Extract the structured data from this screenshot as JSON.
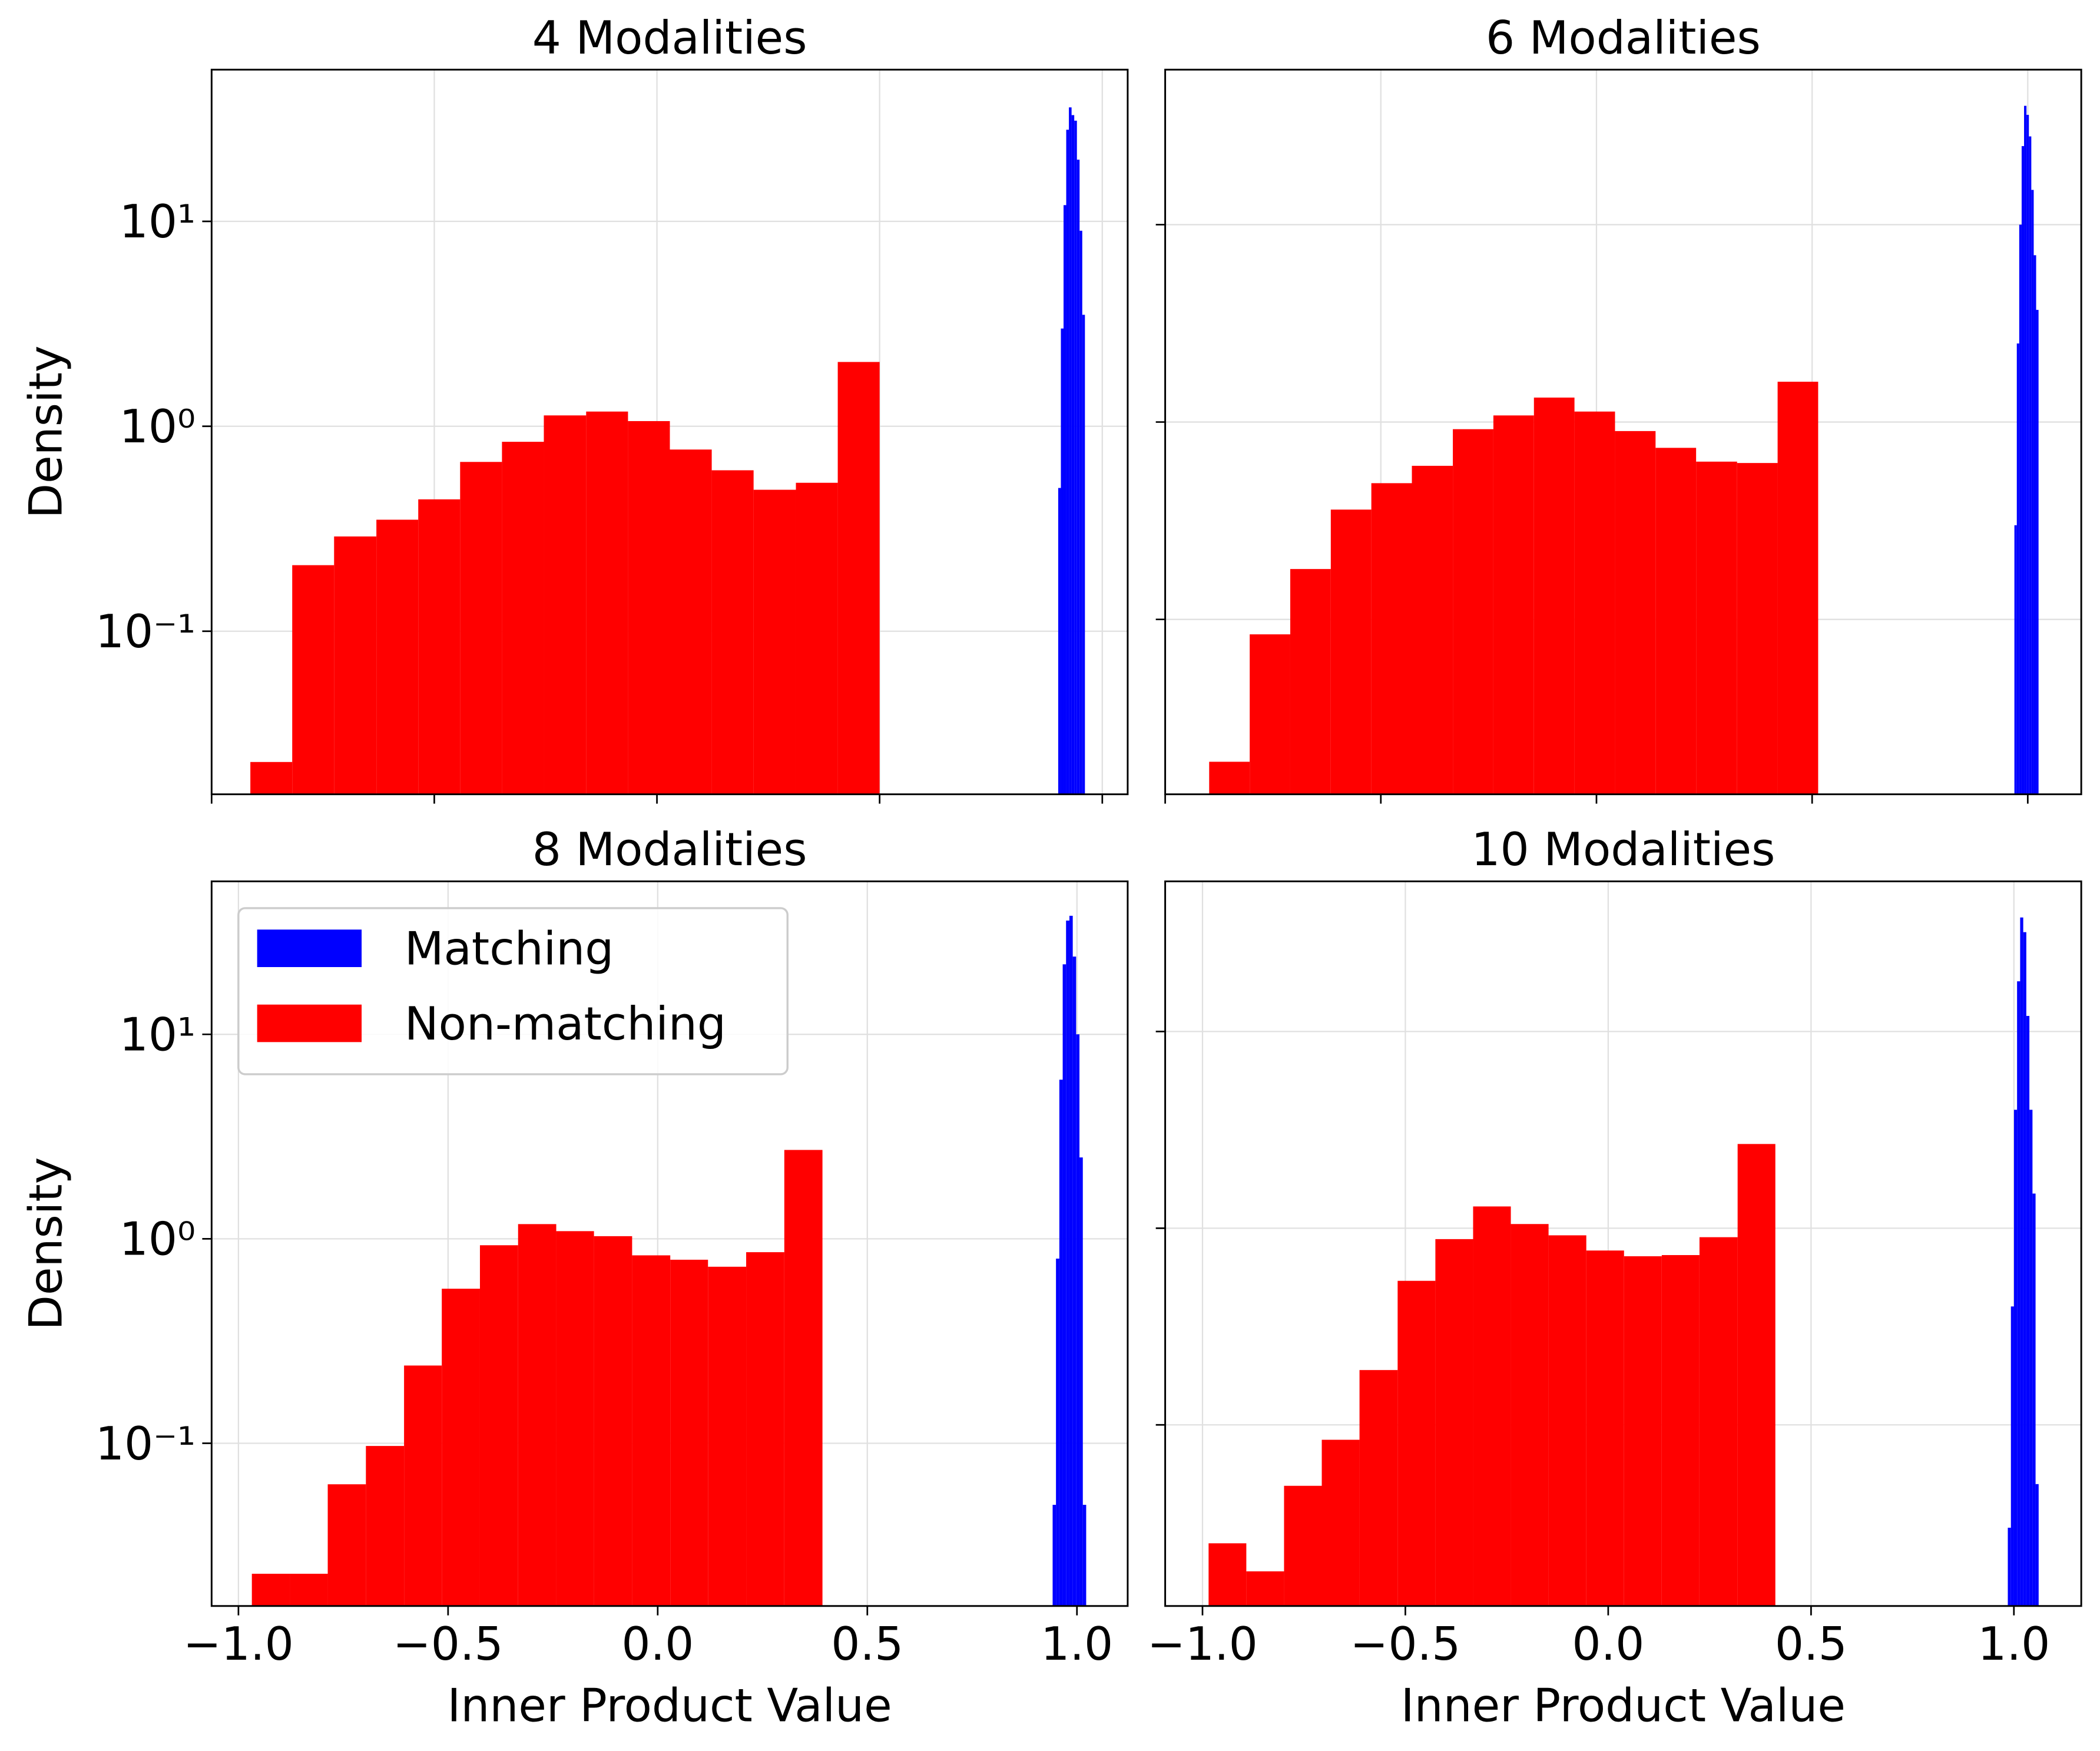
{
  "chart_data": [
    {
      "type": "histogram",
      "title": "4 Modalities",
      "ylabel": "Density",
      "yscale": "log",
      "grid": true,
      "xlim": [
        -1.0,
        1.057
      ],
      "ylim": [
        0.016,
        55
      ],
      "xticks": [
        -1.0,
        -0.5,
        0.0,
        0.5,
        1.0
      ],
      "yticks": [
        {
          "value": 0.1,
          "label": "10⁻¹"
        },
        {
          "value": 1,
          "label": "10⁰"
        },
        {
          "value": 10,
          "label": "10¹"
        }
      ],
      "series": [
        {
          "name": "Matching",
          "color": "#0000ff",
          "bins": [
            0.901,
            0.907,
            0.913,
            0.919,
            0.925,
            0.931,
            0.937,
            0.943,
            0.949,
            0.955,
            0.961
          ],
          "values": [
            0.5,
            3,
            12,
            28,
            36,
            33,
            31,
            20,
            9,
            3.5
          ]
        },
        {
          "name": "Non-matching",
          "color": "#ff0000",
          "bins": [
            -0.913,
            -0.819,
            -0.725,
            -0.63,
            -0.536,
            -0.442,
            -0.348,
            -0.254,
            -0.159,
            -0.065,
            0.029,
            0.123,
            0.217,
            0.312,
            0.406,
            0.5
          ],
          "values": [
            0.023,
            0.21,
            0.29,
            0.35,
            0.44,
            0.67,
            0.84,
            1.13,
            1.18,
            1.06,
            0.77,
            0.61,
            0.49,
            0.53,
            2.06
          ]
        }
      ]
    },
    {
      "type": "histogram",
      "title": "6 Modalities",
      "yscale": "log",
      "grid": true,
      "xlim": [
        -1.0,
        1.124
      ],
      "ylim": [
        0.013,
        61
      ],
      "xticks": [
        -1.0,
        -0.5,
        0.0,
        0.5,
        1.0
      ],
      "yticks": [
        0.1,
        1,
        10
      ],
      "series": [
        {
          "name": "Matching",
          "color": "#0000ff",
          "bins": [
            0.969,
            0.9746,
            0.9802,
            0.9858,
            0.9914,
            0.997,
            1.0026,
            1.0082,
            1.0138,
            1.0194,
            1.025
          ],
          "values": [
            0.3,
            2.5,
            10,
            25,
            40,
            36,
            28,
            15,
            7,
            3.7
          ]
        },
        {
          "name": "Non-matching",
          "color": "#ff0000",
          "bins": [
            -0.898,
            -0.804,
            -0.71,
            -0.616,
            -0.522,
            -0.428,
            -0.333,
            -0.239,
            -0.145,
            -0.051,
            0.043,
            0.137,
            0.231,
            0.326,
            0.42,
            0.514
          ],
          "values": [
            0.019,
            0.084,
            0.18,
            0.36,
            0.49,
            0.6,
            0.92,
            1.08,
            1.33,
            1.13,
            0.9,
            0.74,
            0.63,
            0.62,
            1.6
          ]
        }
      ]
    },
    {
      "type": "histogram",
      "title": "8 Modalities",
      "xlabel": "Inner Product Value",
      "ylabel": "Density",
      "yscale": "log",
      "grid": true,
      "legend": "upper left",
      "xlim": [
        -1.064,
        1.121
      ],
      "ylim": [
        0.016,
        56
      ],
      "xticks": [
        {
          "value": -1.0,
          "label": "−1.0"
        },
        {
          "value": -0.5,
          "label": "−0.5"
        },
        {
          "value": 0.0,
          "label": "0.0"
        },
        {
          "value": 0.5,
          "label": "0.5"
        },
        {
          "value": 1.0,
          "label": "1.0"
        }
      ],
      "yticks": [
        {
          "value": 0.1,
          "label": "10⁻¹"
        },
        {
          "value": 1,
          "label": "10⁰"
        },
        {
          "value": 10,
          "label": "10¹"
        }
      ],
      "series": [
        {
          "name": "Matching",
          "color": "#0000ff",
          "bins": [
            0.942,
            0.95,
            0.958,
            0.966,
            0.974,
            0.982,
            0.99,
            0.998,
            1.006,
            1.014,
            1.022
          ],
          "values": [
            0.05,
            0.8,
            6,
            22,
            36,
            38,
            24,
            10,
            2.5,
            0.05
          ]
        },
        {
          "name": "Non-matching",
          "color": "#ff0000",
          "bins": [
            -0.968,
            -0.877,
            -0.787,
            -0.696,
            -0.605,
            -0.515,
            -0.424,
            -0.333,
            -0.242,
            -0.152,
            -0.061,
            0.03,
            0.12,
            0.211,
            0.302,
            0.393
          ],
          "values": [
            0.023,
            0.023,
            0.063,
            0.097,
            0.24,
            0.57,
            0.93,
            1.18,
            1.09,
            1.03,
            0.83,
            0.79,
            0.73,
            0.86,
            2.72
          ]
        }
      ]
    },
    {
      "type": "histogram",
      "title": "10 Modalities",
      "xlabel": "Inner Product Value",
      "yscale": "log",
      "grid": true,
      "xlim": [
        -1.092,
        1.166
      ],
      "ylim": [
        0.012,
        58
      ],
      "xticks": [
        {
          "value": -1.0,
          "label": "−1.0"
        },
        {
          "value": -0.5,
          "label": "−0.5"
        },
        {
          "value": 0.0,
          "label": "0.0"
        },
        {
          "value": 0.5,
          "label": "0.5"
        },
        {
          "value": 1.0,
          "label": "1.0"
        }
      ],
      "yticks": [
        0.1,
        1,
        10
      ],
      "series": [
        {
          "name": "Matching",
          "color": "#0000ff",
          "bins": [
            0.985,
            0.9926,
            1.0002,
            1.0078,
            1.0154,
            1.023,
            1.0306,
            1.0382,
            1.0458,
            1.0534,
            1.061
          ],
          "values": [
            0.03,
            0.4,
            4,
            18,
            38,
            32,
            12,
            4,
            1.5,
            0.05
          ]
        },
        {
          "name": "Non-matching",
          "color": "#ff0000",
          "bins": [
            -0.985,
            -0.892,
            -0.799,
            -0.706,
            -0.613,
            -0.519,
            -0.426,
            -0.333,
            -0.24,
            -0.147,
            -0.054,
            0.039,
            0.132,
            0.225,
            0.319,
            0.412
          ],
          "values": [
            0.025,
            0.018,
            0.049,
            0.084,
            0.19,
            0.54,
            0.88,
            1.29,
            1.05,
            0.92,
            0.77,
            0.72,
            0.73,
            0.9,
            2.68
          ]
        }
      ]
    }
  ]
}
